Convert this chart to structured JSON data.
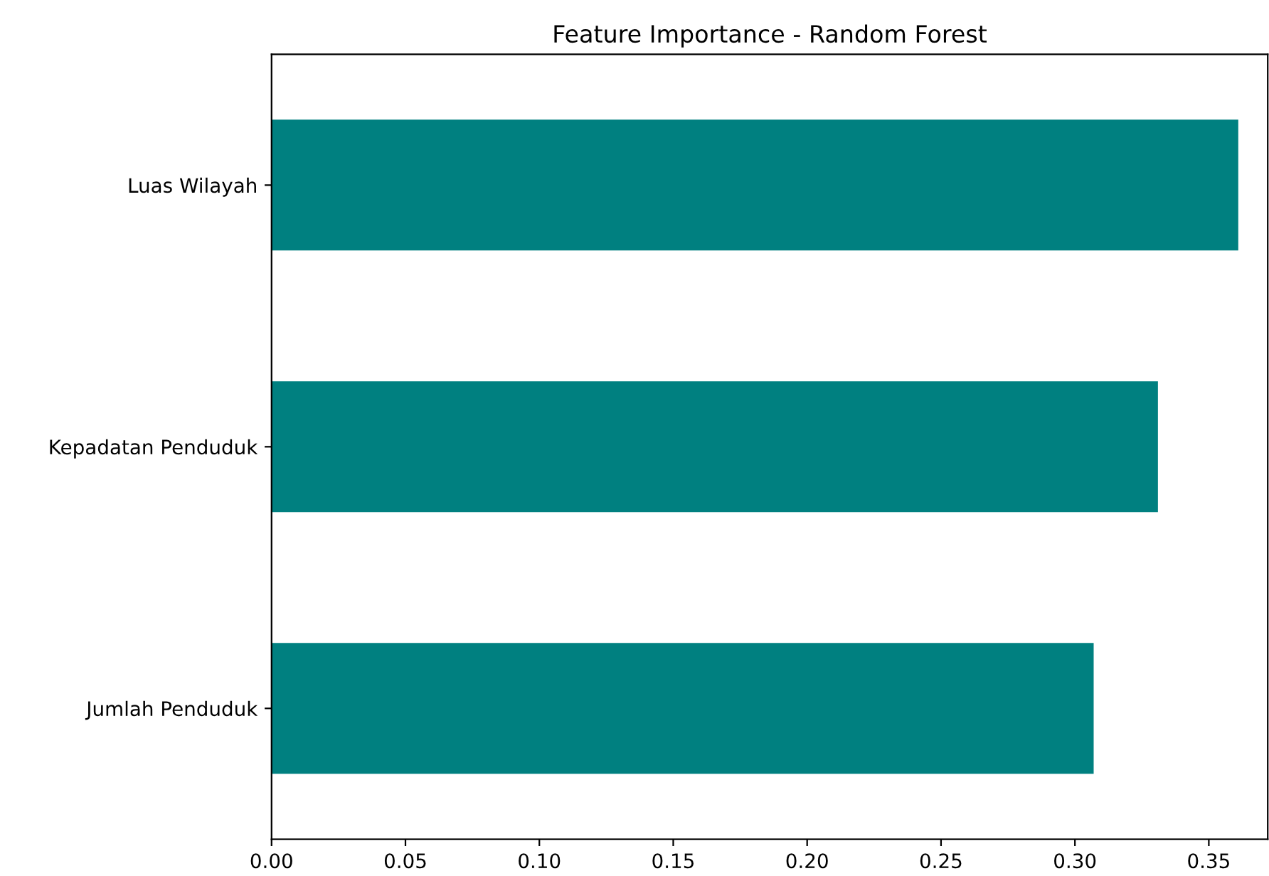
{
  "chart_data": {
    "type": "bar",
    "orientation": "horizontal",
    "title": "Feature Importance - Random Forest",
    "categories": [
      "Luas Wilayah",
      "Kepadatan Penduduk",
      "Jumlah Penduduk"
    ],
    "values": [
      0.361,
      0.331,
      0.307
    ],
    "color": "#008080",
    "xlim": [
      0,
      0.372
    ],
    "xticks": [
      {
        "value": 0,
        "label": "0.00"
      },
      0.05,
      {
        "value": 0.1,
        "label": "0.10"
      },
      0.15,
      {
        "value": 0.2,
        "label": "0.20"
      },
      0.25,
      {
        "value": 0.3,
        "label": "0.30"
      },
      0.35
    ],
    "grid": false,
    "legend": false
  }
}
